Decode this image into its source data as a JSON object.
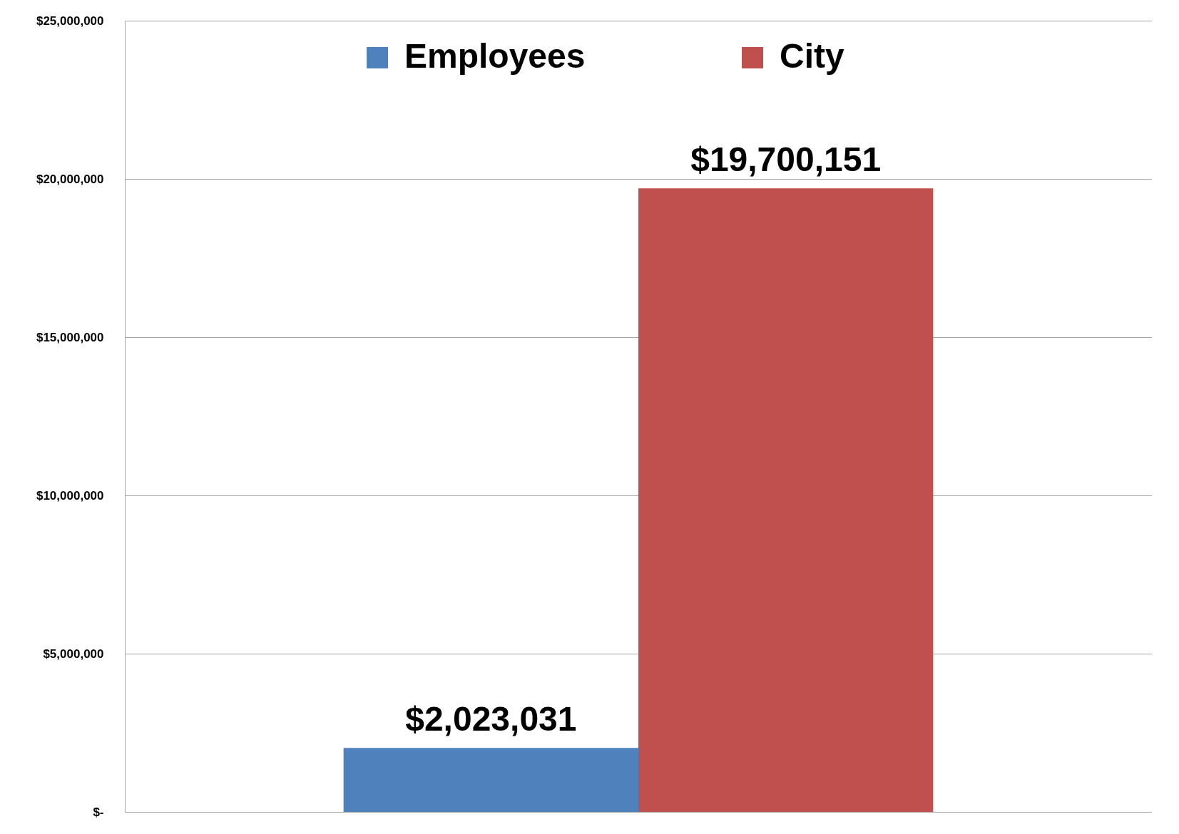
{
  "chart_data": {
    "type": "bar",
    "categories": [
      null
    ],
    "series": [
      {
        "name": "Employees",
        "color": "#4f81bd",
        "values": [
          2023031
        ],
        "value_labels": [
          "$2,023,031"
        ]
      },
      {
        "name": "City",
        "color": "#c0504d",
        "values": [
          19700151
        ],
        "value_labels": [
          "$19,700,151"
        ]
      }
    ],
    "ylim": [
      0,
      25000000
    ],
    "yticks": [
      {
        "value": 0,
        "label": "$-"
      },
      {
        "value": 5000000,
        "label": "$5,000,000"
      },
      {
        "value": 10000000,
        "label": "$10,000,000"
      },
      {
        "value": 15000000,
        "label": "$15,000,000"
      },
      {
        "value": 20000000,
        "label": "$20,000,000"
      },
      {
        "value": 25000000,
        "label": "$25,000,000"
      }
    ],
    "grid": "y",
    "legend": "top"
  }
}
